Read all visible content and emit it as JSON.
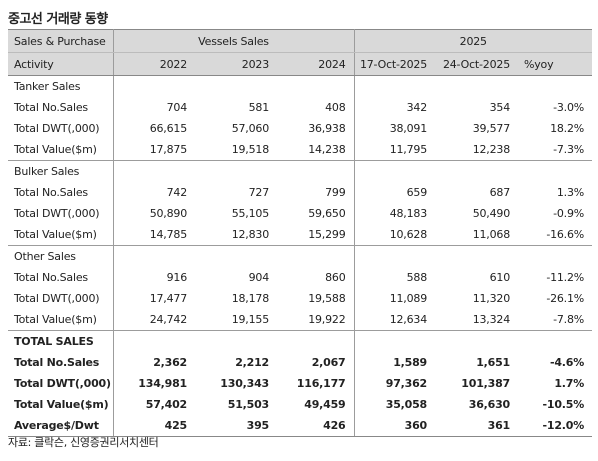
{
  "title": "중고선 거래량 동향",
  "header": {
    "row1": {
      "label": "Sales & Purchase",
      "group1": "Vessels Sales",
      "group2": "2025"
    },
    "row2": {
      "label": "Activity",
      "cols": [
        "2022",
        "2023",
        "2024",
        "17-Oct-2025",
        "24-Oct-2025",
        "%yoy"
      ]
    }
  },
  "sections": [
    {
      "name": "Tanker Sales",
      "rows": [
        {
          "label": "Total No.Sales",
          "values": [
            "704",
            "581",
            "408",
            "342",
            "354",
            "-3.0%"
          ]
        },
        {
          "label": "Total DWT(,000)",
          "values": [
            "66,615",
            "57,060",
            "36,938",
            "38,091",
            "39,577",
            "18.2%"
          ]
        },
        {
          "label": "Total Value($m)",
          "values": [
            "17,875",
            "19,518",
            "14,238",
            "11,795",
            "12,238",
            "-7.3%"
          ]
        }
      ]
    },
    {
      "name": "Bulker Sales",
      "rows": [
        {
          "label": "Total No.Sales",
          "values": [
            "742",
            "727",
            "799",
            "659",
            "687",
            "1.3%"
          ]
        },
        {
          "label": "Total DWT(,000)",
          "values": [
            "50,890",
            "55,105",
            "59,650",
            "48,183",
            "50,490",
            "-0.9%"
          ]
        },
        {
          "label": "Total Value($m)",
          "values": [
            "14,785",
            "12,830",
            "15,299",
            "10,628",
            "11,068",
            "-16.6%"
          ]
        }
      ]
    },
    {
      "name": "Other Sales",
      "rows": [
        {
          "label": "Total No.Sales",
          "values": [
            "916",
            "904",
            "860",
            "588",
            "610",
            "-11.2%"
          ]
        },
        {
          "label": "Total DWT(,000)",
          "values": [
            "17,477",
            "18,178",
            "19,588",
            "11,089",
            "11,320",
            "-26.1%"
          ]
        },
        {
          "label": "Total Value($m)",
          "values": [
            "24,742",
            "19,155",
            "19,922",
            "12,634",
            "13,324",
            "-7.8%"
          ]
        }
      ]
    },
    {
      "name": "TOTAL SALES",
      "rows": [
        {
          "label": "Total No.Sales",
          "values": [
            "2,362",
            "2,212",
            "2,067",
            "1,589",
            "1,651",
            "-4.6%"
          ]
        },
        {
          "label": "Total DWT(,000)",
          "values": [
            "134,981",
            "130,343",
            "116,177",
            "97,362",
            "101,387",
            "1.7%"
          ]
        },
        {
          "label": "Total Value($m)",
          "values": [
            "57,402",
            "51,503",
            "49,459",
            "35,058",
            "36,630",
            "-10.5%"
          ]
        },
        {
          "label": "Average$/Dwt",
          "values": [
            "425",
            "395",
            "426",
            "360",
            "361",
            "-12.0%"
          ]
        }
      ]
    }
  ],
  "source": "자료: 클락슨, 신영증권리서치센터"
}
